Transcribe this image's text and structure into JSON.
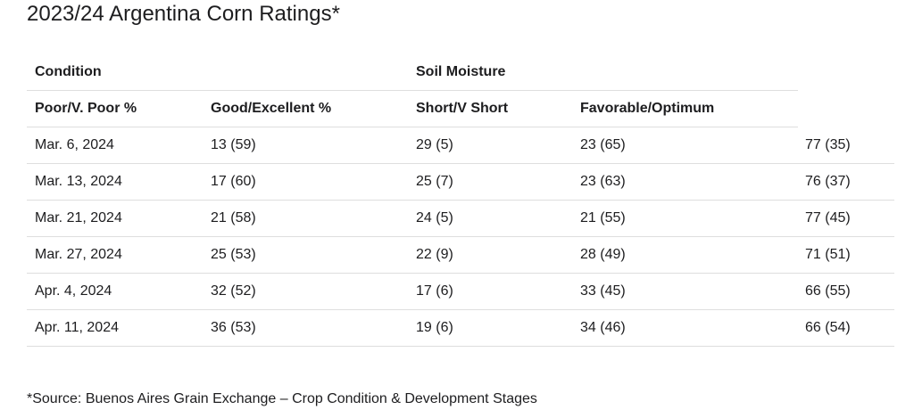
{
  "title": "2023/24 Argentina Corn Ratings*",
  "table": {
    "group_headers": {
      "condition": "Condition",
      "soil_moisture": "Soil Moisture"
    },
    "column_headers": [
      "Poor/V. Poor %",
      "Good/Excellent %",
      "Short/V Short",
      "Favorable/Optimum"
    ],
    "rows": [
      [
        "Mar. 6, 2024",
        "13 (59)",
        "29 (5)",
        "23 (65)",
        "77 (35)"
      ],
      [
        "Mar. 13, 2024",
        "17 (60)",
        "25 (7)",
        "23 (63)",
        "76 (37)"
      ],
      [
        "Mar. 21, 2024",
        "21 (58)",
        "24 (5)",
        "21 (55)",
        "77 (45)"
      ],
      [
        "Mar. 27, 2024",
        "25 (53)",
        "22 (9)",
        "28 (49)",
        "71 (51)"
      ],
      [
        "Apr. 4, 2024",
        "32 (52)",
        "17 (6)",
        "33 (45)",
        "66 (55)"
      ],
      [
        "Apr. 11, 2024",
        "36 (53)",
        "19 (6)",
        "34 (46)",
        "66 (54)"
      ]
    ]
  },
  "footnote": "*Source: Buenos Aires Grain Exchange – Crop Condition & Development Stages"
}
